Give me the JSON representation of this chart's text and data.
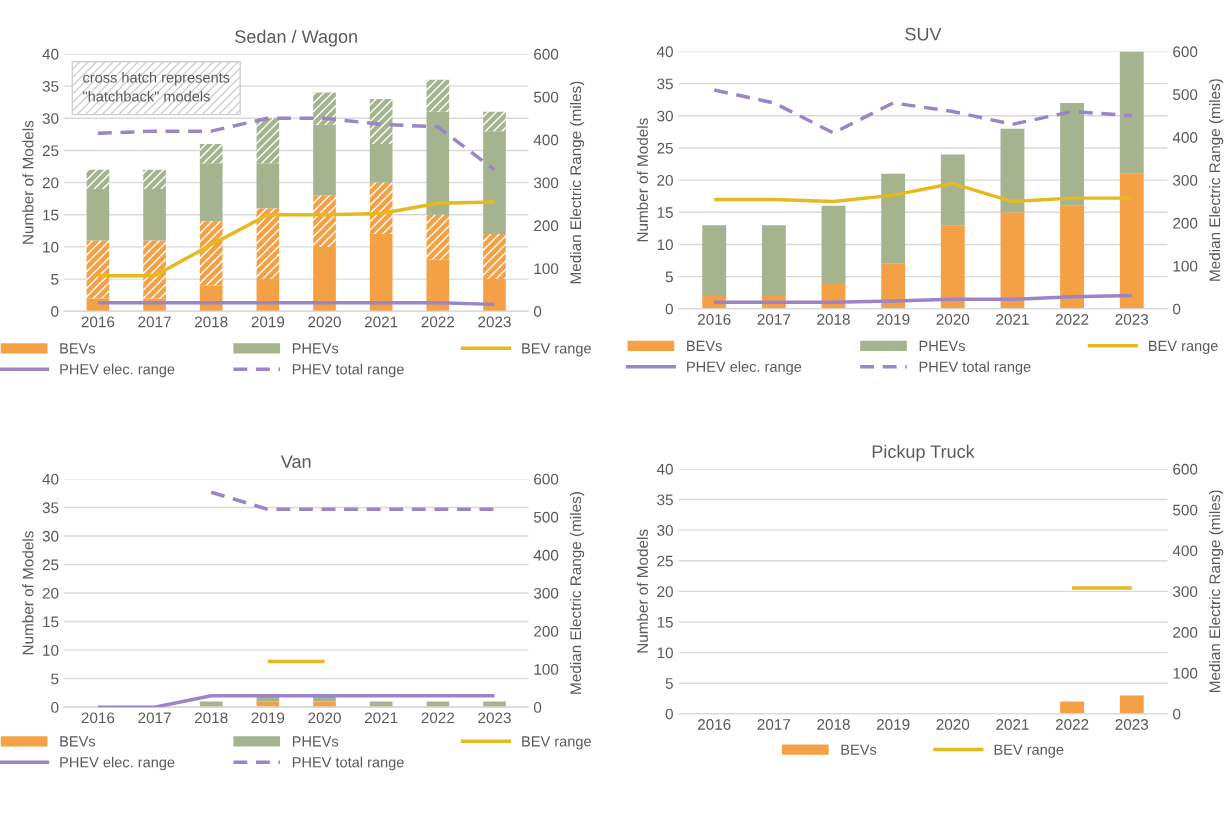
{
  "chart_data": [
    {
      "type": "bar",
      "title": "Sedan / Wagon",
      "ylabel": "Number of Models",
      "y2label": "Median Electric Range (miles)",
      "stacked": true,
      "grid": "y",
      "legend": "bottom",
      "categories": [
        "2016",
        "2017",
        "2018",
        "2019",
        "2020",
        "2021",
        "2022",
        "2023"
      ],
      "ylim": [
        0,
        40
      ],
      "yticks": [
        0,
        5,
        10,
        15,
        20,
        25,
        30,
        35,
        40
      ],
      "y2lim": [
        0,
        600
      ],
      "y2ticks": [
        0,
        100,
        200,
        300,
        400,
        500,
        600
      ],
      "annotations": [
        "cross hatch represents\n\"hatchback\" models"
      ],
      "series": [
        {
          "name": "BEVs",
          "color": "#f4a146",
          "values": [
            2,
            2,
            4,
            5,
            10,
            12,
            8,
            5
          ]
        },
        {
          "color": "#f4a146",
          "values": [
            9,
            9,
            10,
            11,
            8,
            8,
            7,
            7
          ]
        },
        {
          "name": "PHEVs",
          "color": "#a5b48f",
          "values": [
            8,
            8,
            9,
            7,
            11,
            6,
            16,
            16
          ]
        },
        {
          "color": "#a5b48f",
          "values": [
            3,
            3,
            3,
            7,
            5,
            7,
            5,
            3
          ]
        },
        {
          "name": "BEV range",
          "type": "line",
          "axis": "y2",
          "line_style": "solid",
          "color": "#e6b91e",
          "values": [
            83,
            83,
            155,
            225,
            225,
            228,
            252,
            255
          ]
        },
        {
          "name": "PHEV elec. range",
          "type": "line",
          "axis": "y2",
          "line_style": "solid",
          "color": "#9b84c8",
          "values": [
            20,
            20,
            20,
            20,
            20,
            20,
            20,
            16
          ]
        },
        {
          "name": "PHEV total range",
          "type": "line",
          "axis": "y2",
          "line_style": "dashed",
          "color": "#9b84c8",
          "values": [
            415,
            420,
            420,
            450,
            450,
            436,
            430,
            330
          ]
        }
      ]
    },
    {
      "type": "bar",
      "title": "SUV",
      "ylabel": "Number of Models",
      "y2label": "Median Electric Range (miles)",
      "stacked": true,
      "grid": "y",
      "legend": "bottom",
      "categories": [
        "2016",
        "2017",
        "2018",
        "2019",
        "2020",
        "2021",
        "2022",
        "2023"
      ],
      "ylim": [
        0,
        40
      ],
      "yticks": [
        0,
        5,
        10,
        15,
        20,
        25,
        30,
        35,
        40
      ],
      "y2lim": [
        0,
        600
      ],
      "y2ticks": [
        0,
        100,
        200,
        300,
        400,
        500,
        600
      ],
      "series": [
        {
          "name": "BEVs",
          "color": "#f4a146",
          "values": [
            2,
            2,
            4,
            7,
            13,
            15,
            16,
            21
          ]
        },
        {
          "name": "PHEVs",
          "color": "#a5b48f",
          "values": [
            11,
            11,
            12,
            14,
            11,
            13,
            16,
            19
          ]
        },
        {
          "name": "BEV range",
          "type": "line",
          "axis": "y2",
          "line_style": "solid",
          "color": "#e6b91e",
          "values": [
            255,
            255,
            250,
            265,
            292,
            250,
            258,
            258
          ]
        },
        {
          "name": "PHEV elec. range",
          "type": "line",
          "axis": "y2",
          "line_style": "solid",
          "color": "#9b84c8",
          "values": [
            15,
            15,
            15,
            18,
            22,
            22,
            28,
            31
          ]
        },
        {
          "name": "PHEV total range",
          "type": "line",
          "axis": "y2",
          "line_style": "dashed",
          "color": "#9b84c8",
          "values": [
            510,
            480,
            410,
            480,
            460,
            430,
            460,
            450
          ]
        }
      ]
    },
    {
      "type": "bar",
      "title": "Van",
      "ylabel": "Number of Models",
      "y2label": "Median Electric Range (miles)",
      "stacked": true,
      "grid": "y",
      "legend": "bottom",
      "categories": [
        "2016",
        "2017",
        "2018",
        "2019",
        "2020",
        "2021",
        "2022",
        "2023"
      ],
      "ylim": [
        0,
        40
      ],
      "yticks": [
        0,
        5,
        10,
        15,
        20,
        25,
        30,
        35,
        40
      ],
      "y2lim": [
        0,
        600
      ],
      "y2ticks": [
        0,
        100,
        200,
        300,
        400,
        500,
        600
      ],
      "series": [
        {
          "name": "BEVs",
          "color": "#f4a146",
          "values": [
            null,
            null,
            null,
            1,
            1,
            null,
            null,
            null
          ]
        },
        {
          "name": "PHEVs",
          "color": "#a5b48f",
          "values": [
            null,
            null,
            1,
            1,
            1,
            1,
            1,
            1
          ]
        },
        {
          "name": "BEV range",
          "type": "line",
          "axis": "y2",
          "line_style": "solid",
          "color": "#e6b91e",
          "values": [
            null,
            null,
            null,
            120,
            120,
            null,
            null,
            null
          ]
        },
        {
          "name": "PHEV elec. range",
          "type": "line",
          "axis": "y2",
          "line_style": "solid",
          "color": "#9b84c8",
          "values": [
            0,
            0,
            30,
            30,
            30,
            30,
            30,
            30
          ]
        },
        {
          "name": "PHEV total range",
          "type": "line",
          "axis": "y2",
          "line_style": "dashed",
          "color": "#9b84c8",
          "values": [
            null,
            null,
            565,
            520,
            520,
            520,
            520,
            520
          ]
        }
      ]
    },
    {
      "type": "bar",
      "title": "Pickup Truck",
      "ylabel": "Number of Models",
      "y2label": "Median Electric Range (miles)",
      "stacked": true,
      "grid": "y",
      "legend": "bottom",
      "categories": [
        "2016",
        "2017",
        "2018",
        "2019",
        "2020",
        "2021",
        "2022",
        "2023"
      ],
      "ylim": [
        0,
        40
      ],
      "yticks": [
        0,
        5,
        10,
        15,
        20,
        25,
        30,
        35,
        40
      ],
      "y2lim": [
        0,
        600
      ],
      "y2ticks": [
        0,
        100,
        200,
        300,
        400,
        500,
        600
      ],
      "series": [
        {
          "name": "BEVs",
          "color": "#f4a146",
          "values": [
            null,
            null,
            null,
            null,
            null,
            null,
            2,
            3
          ]
        },
        {
          "name": "BEV range",
          "type": "line",
          "axis": "y2",
          "line_style": "solid",
          "color": "#e6b91e",
          "values": [
            null,
            null,
            null,
            null,
            null,
            null,
            308,
            308
          ]
        }
      ]
    }
  ]
}
